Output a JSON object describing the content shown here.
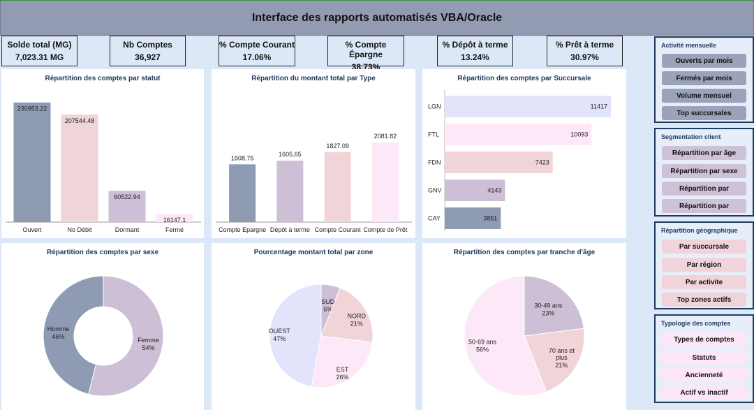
{
  "header": {
    "title": "Interface des rapports automatisés VBA/Oracle"
  },
  "kpis": [
    {
      "label": "Solde total (MG)",
      "value": "7,023.31 MG"
    },
    {
      "label": "Nb Comptes",
      "value": "36,927"
    },
    {
      "label": "% Compte Courant",
      "value": "17.06%"
    },
    {
      "label": "% Compte Épargne",
      "value": "38.73%"
    },
    {
      "label": "% Dépôt à terme",
      "value": "13.24%"
    },
    {
      "label": "% Prêt à terme",
      "value": "30.97%"
    }
  ],
  "colors": {
    "slate": "#8f9bb3",
    "pink": "#f0d4d8",
    "mauve": "#cdbfd5",
    "lightpink": "#fde8f7",
    "lavender": "#e2e4fc"
  },
  "menus": [
    {
      "title": "Activité mensuelle",
      "style": "slate",
      "buttons": [
        "Ouverts par mois",
        "Fermés par mois",
        "Volume mensuel",
        "Top succursales"
      ]
    },
    {
      "title": "Segmentation client",
      "style": "mauve",
      "buttons": [
        "Répartition par âge",
        "Répartition par sexe",
        "Répartition par",
        "Répartition par"
      ]
    },
    {
      "title": "Répartition géographique",
      "style": "pink",
      "buttons": [
        "Par succursale",
        "Par région",
        "Par activite",
        "Top zones actifs"
      ]
    },
    {
      "title": "Typologie des comptes",
      "style": "lightpink",
      "buttons": [
        "Types de comptes",
        "Statuts",
        "Ancienneté",
        "Actif vs inactif"
      ]
    }
  ],
  "chart_data": [
    {
      "type": "bar",
      "title": "Répartition des comptes par statut",
      "categories": [
        "Ouvert",
        "No Débit",
        "Dormant",
        "Fermé"
      ],
      "values": [
        230953.22,
        207544.48,
        60522.94,
        16147.1
      ],
      "labels": [
        "230953.22",
        "207544.48",
        "60522.94",
        "16147.1"
      ],
      "ylim": [
        0,
        240000
      ],
      "grid": false
    },
    {
      "type": "bar",
      "title": "Répartition du montant total par Type",
      "categories": [
        "Compte Epargne",
        "Dépôt à terme",
        "Compte Courant",
        "Compte de Prêt"
      ],
      "values": [
        1508.75,
        1605.65,
        1827.09,
        2081.82
      ],
      "labels": [
        "1508.75",
        "1605.65",
        "1827.09",
        "2081.82"
      ],
      "ylim": [
        0,
        2500
      ],
      "grid": false
    },
    {
      "type": "bar",
      "orientation": "horizontal",
      "title": "Répartition des comptes par Succursale",
      "categories": [
        "LGN",
        "FTL",
        "FDN",
        "GNV",
        "CAY"
      ],
      "values": [
        11417,
        10093,
        7423,
        4143,
        3851
      ],
      "labels": [
        "11417",
        "10093",
        "7423",
        "4143",
        "3851"
      ],
      "xlim": [
        0,
        12000
      ],
      "grid": false
    },
    {
      "type": "pie",
      "donut": true,
      "title": "Répartition des comptes par sexe",
      "slices": [
        {
          "name": "Femme",
          "pct": "54%",
          "value": 54
        },
        {
          "name": "Homme",
          "pct": "46%",
          "value": 46
        }
      ]
    },
    {
      "type": "pie",
      "title": "Pourcentage montant total par zone",
      "slices": [
        {
          "name": "SUD",
          "pct": "6%",
          "value": 6
        },
        {
          "name": "NORD",
          "pct": "21%",
          "value": 21
        },
        {
          "name": "EST",
          "pct": "26%",
          "value": 26
        },
        {
          "name": "OUEST",
          "pct": "47%",
          "value": 47
        }
      ]
    },
    {
      "type": "pie",
      "title": "Répartition des comptes par tranche d'âge",
      "slices": [
        {
          "name": "30-49 ans",
          "pct": "23%",
          "value": 23
        },
        {
          "name": "70 ans et plus",
          "pct": "21%",
          "value": 21
        },
        {
          "name": "50-69 ans",
          "pct": "56%",
          "value": 56
        }
      ]
    }
  ]
}
